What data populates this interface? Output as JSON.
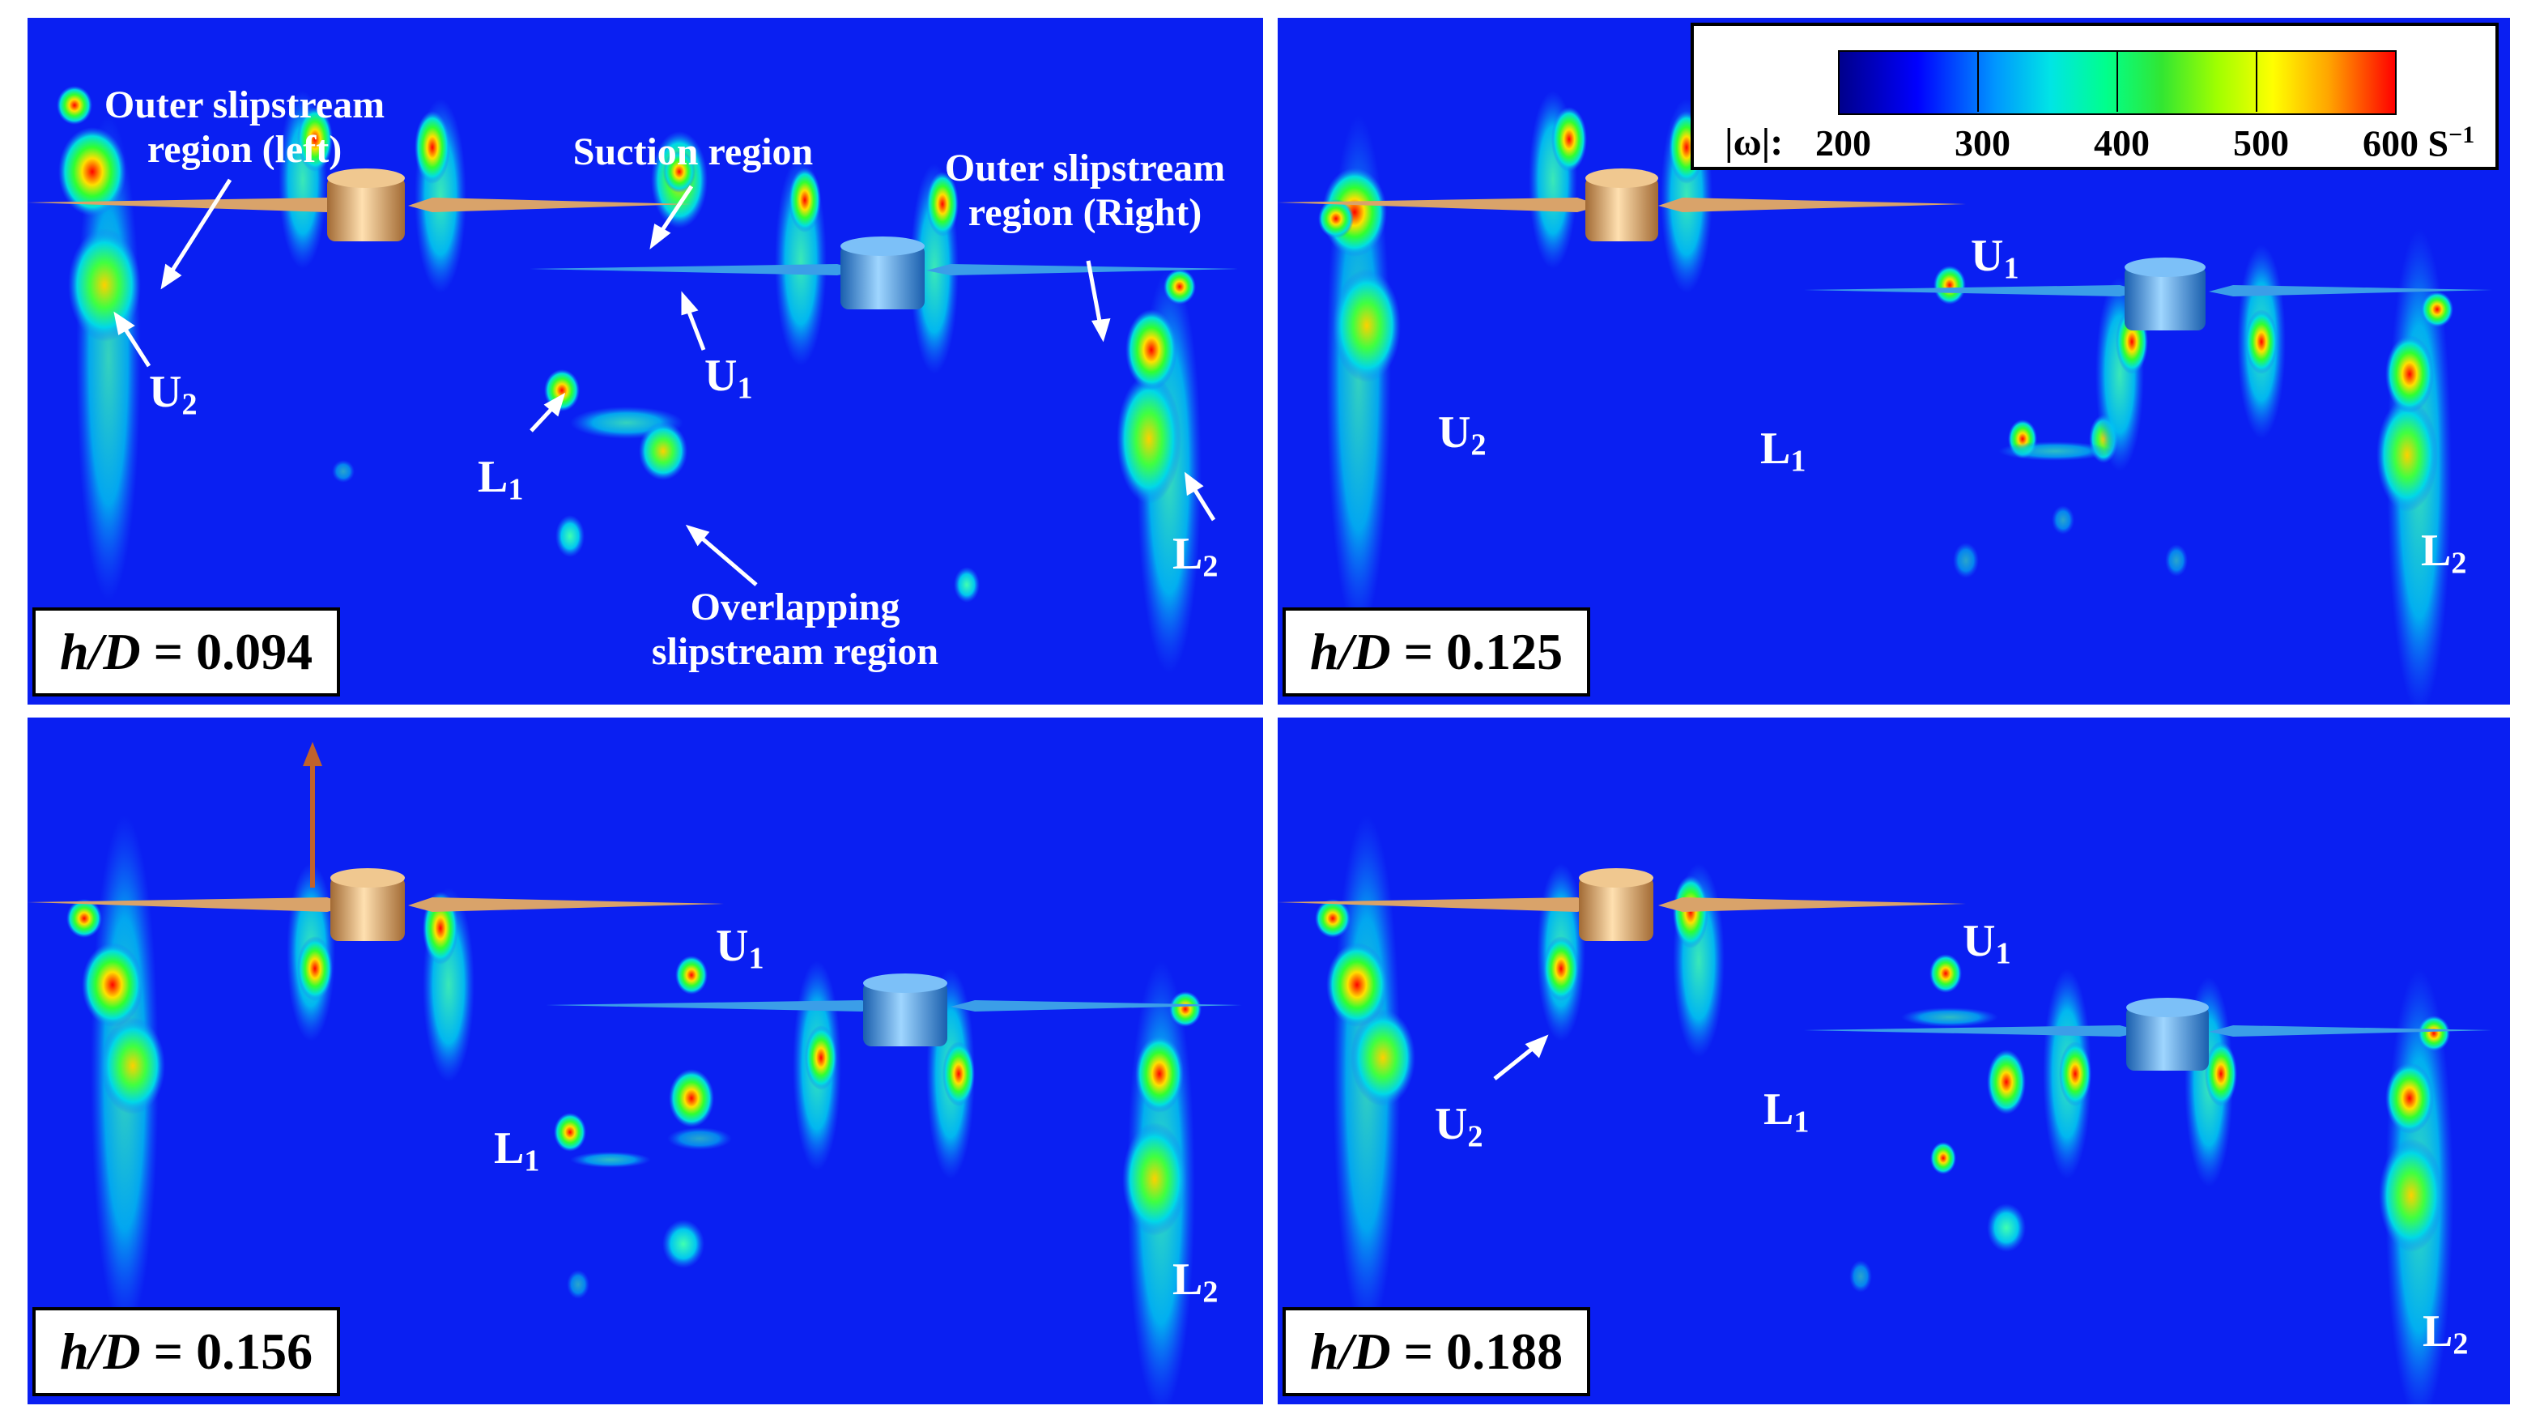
{
  "panels": [
    {
      "id": "tl",
      "hd": {
        "var": "h/D",
        "eq": "=",
        "val": "0.094"
      }
    },
    {
      "id": "tr",
      "hd": {
        "var": "h/D",
        "eq": "=",
        "val": "0.125"
      }
    },
    {
      "id": "bl",
      "hd": {
        "var": "h/D",
        "eq": "=",
        "val": "0.156"
      }
    },
    {
      "id": "br",
      "hd": {
        "var": "h/D",
        "eq": "=",
        "val": "0.188"
      }
    }
  ],
  "labels": {
    "U": "U",
    "L": "L",
    "sub1": "1",
    "sub2": "2"
  },
  "regions": {
    "outer_left_1": "Outer slipstream",
    "outer_left_2": "region (left)",
    "suction": "Suction region",
    "outer_right_1": "Outer slipstream",
    "outer_right_2": "region (Right)",
    "overlap_1": "Overlapping",
    "overlap_2": "slipstream region"
  },
  "colorbar": {
    "symbol": "|ω|:",
    "ticks": [
      "200",
      "300",
      "400",
      "500",
      "600 S"
    ],
    "unit_sup": "−1"
  },
  "colors": {
    "background": "#0a1ff2",
    "upper_rotor": "#d9a36a",
    "lower_rotor": "#3b9ee8",
    "arrow_motion": "#c0622b"
  }
}
